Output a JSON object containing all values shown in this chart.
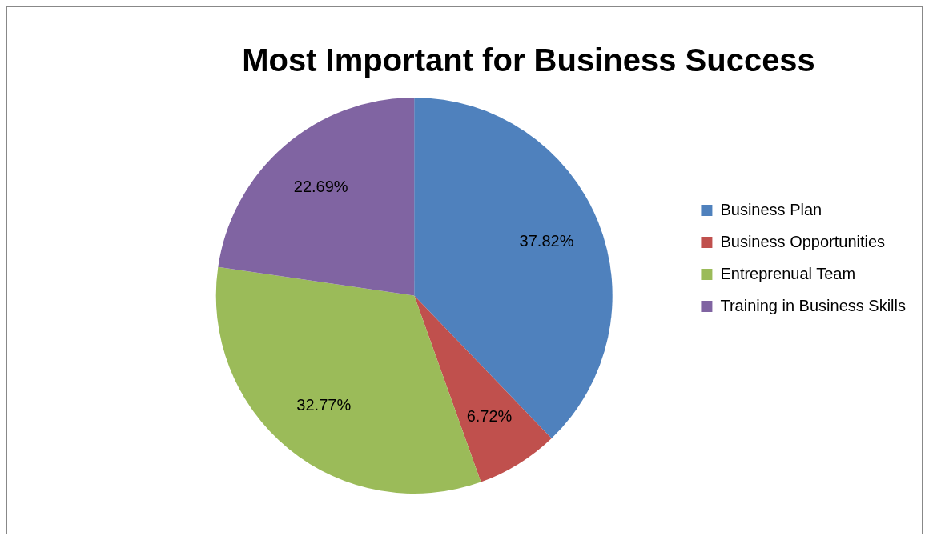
{
  "chart_data": {
    "type": "pie",
    "title": "Most Important for Business Success",
    "categories": [
      "Business Plan",
      "Business Opportunities",
      "Entreprenual Team",
      "Training in Business Skills"
    ],
    "values": [
      37.82,
      6.72,
      32.77,
      22.69
    ],
    "value_labels": [
      "37.82%",
      "6.72%",
      "32.77%",
      "22.69%"
    ],
    "colors": [
      "#4f81bd",
      "#c0504d",
      "#9bbb59",
      "#8064a2"
    ],
    "legend": "right"
  }
}
